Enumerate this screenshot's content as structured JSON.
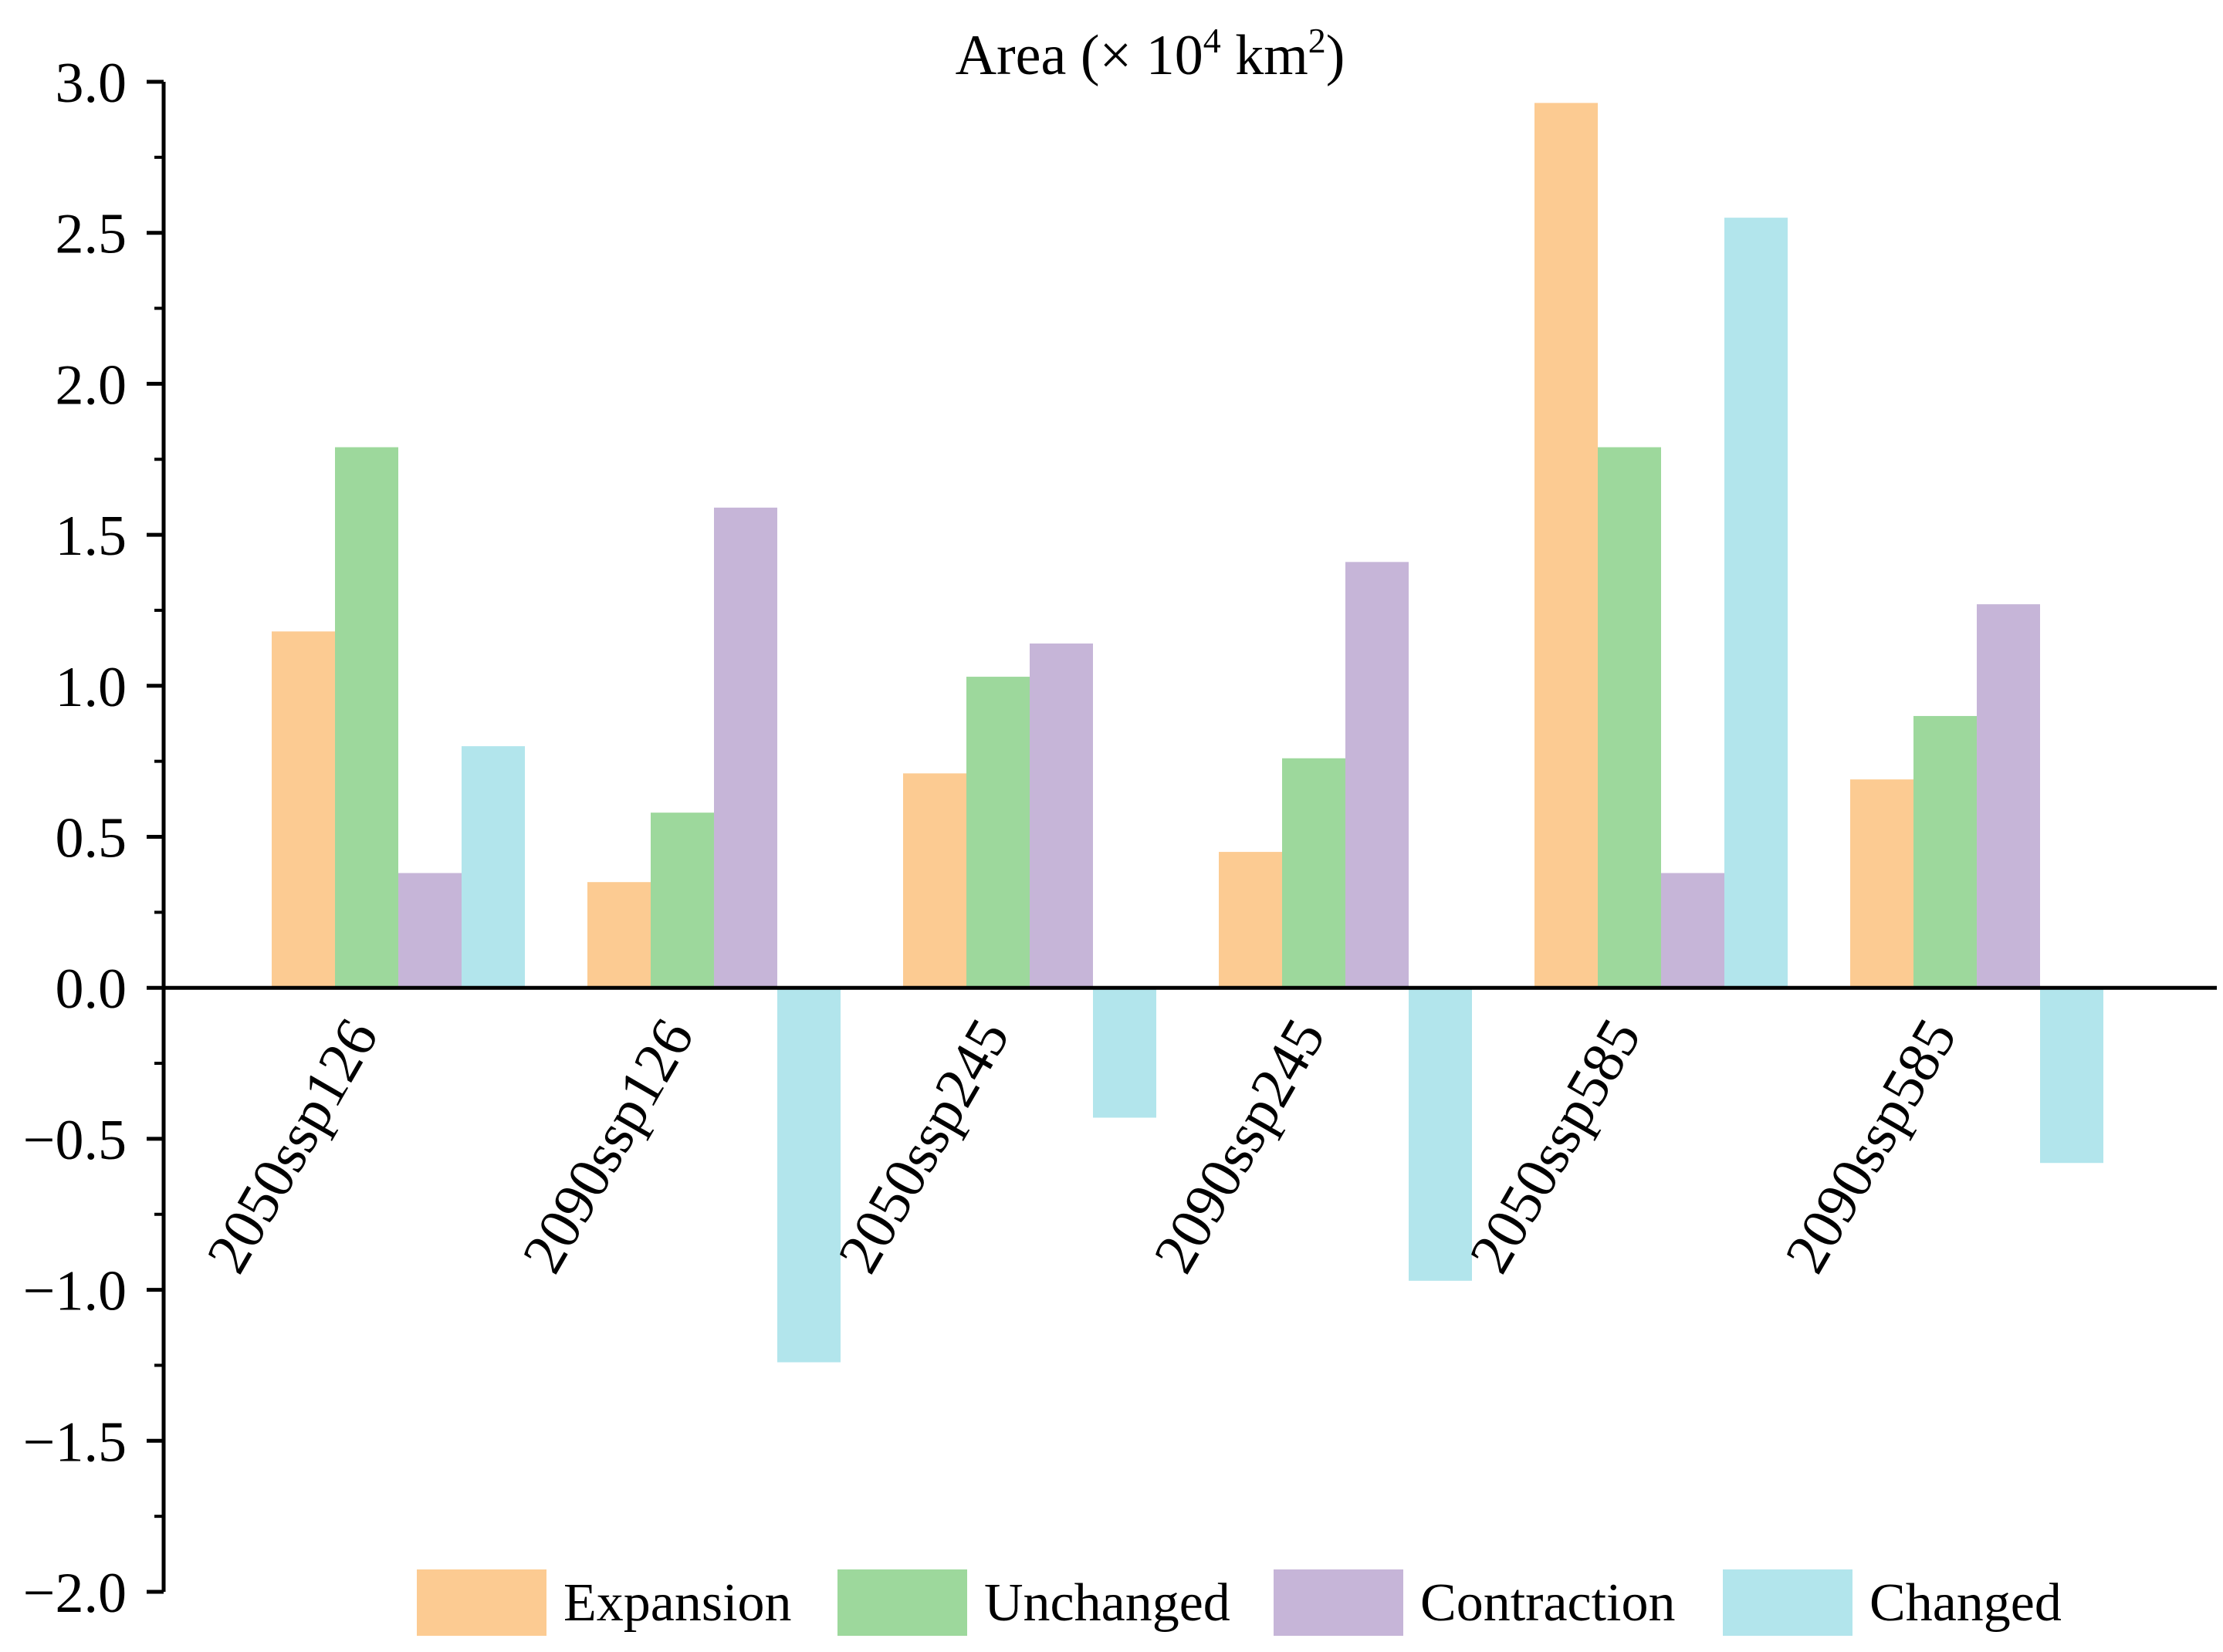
{
  "chart_data": {
    "type": "bar",
    "title": {
      "prefix": "Area (× 10",
      "exp1": "4",
      "middle": " km",
      "exp2": "2",
      "suffix": ")"
    },
    "xlabel": "",
    "ylabel": "",
    "ylim": [
      -2.0,
      3.0
    ],
    "yticks": [
      3.0,
      2.5,
      2.0,
      1.5,
      1.0,
      0.5,
      0.0,
      -0.5,
      -1.0,
      -1.5,
      -2.0
    ],
    "ytick_labels": [
      "3.0",
      "2.5",
      "2.0",
      "1.5",
      "1.0",
      "0.5",
      "0.0",
      "−0.5",
      "−1.0",
      "−1.5",
      "−2.0"
    ],
    "categories": [
      "2050ssp126",
      "2090ssp126",
      "2050ssp245",
      "2090ssp245",
      "2050ssp585",
      "2090ssp585"
    ],
    "series": [
      {
        "name": "Expansion",
        "color": "#FCCB92",
        "values": [
          1.18,
          0.35,
          0.71,
          0.45,
          2.93,
          0.69
        ]
      },
      {
        "name": "Unchanged",
        "color": "#9DD89C",
        "values": [
          1.79,
          0.58,
          1.03,
          0.76,
          1.79,
          0.9
        ]
      },
      {
        "name": "Contraction",
        "color": "#C6B5D8",
        "values": [
          0.38,
          1.59,
          1.14,
          1.41,
          0.38,
          1.27
        ]
      },
      {
        "name": "Changed",
        "color": "#B2E5EC",
        "values": [
          0.8,
          -1.24,
          -0.43,
          -0.97,
          2.55,
          -0.58
        ]
      }
    ],
    "legend": "bottom",
    "grid": false
  }
}
